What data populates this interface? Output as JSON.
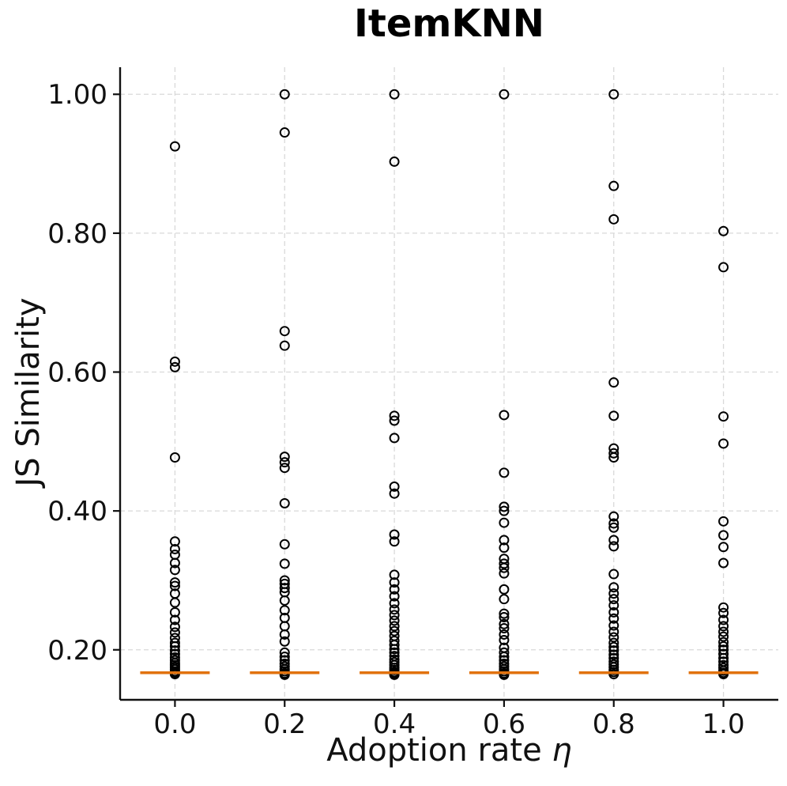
{
  "chart": {
    "title": "ItemKNN",
    "xlabel_text": "Adoption rate ",
    "xlabel_symbol": "η",
    "ylabel": "JS Similarity"
  },
  "chart_data": {
    "type": "boxplot",
    "title": "ItemKNN",
    "xlabel": "Adoption rate η",
    "ylabel": "JS Similarity",
    "categories": [
      "0.0",
      "0.2",
      "0.4",
      "0.6",
      "0.8",
      "1.0"
    ],
    "yticks": [
      {
        "value": 1.0,
        "label": "1.00"
      },
      {
        "value": 0.8,
        "label": "0.80"
      },
      {
        "value": 0.6,
        "label": "0.60"
      },
      {
        "value": 0.4,
        "label": "0.40"
      },
      {
        "value": 0.2,
        "label": "0.20"
      }
    ],
    "ylim": [
      0.128,
      1.039
    ],
    "grid": "dashed, both axes",
    "legend": "none",
    "marker": "open circle",
    "median_color": "#e1720e",
    "series": [
      {
        "category": "0.0",
        "median": 0.167,
        "outliers": [
          0.925,
          0.615,
          0.607,
          0.477,
          0.356,
          0.345,
          0.337,
          0.325,
          0.315,
          0.297,
          0.292,
          0.281,
          0.268,
          0.254,
          0.243,
          0.233,
          0.225,
          0.217,
          0.21,
          0.205,
          0.199,
          0.194,
          0.189,
          0.185,
          0.181,
          0.178,
          0.175,
          0.172,
          0.169,
          0.167,
          0.165
        ]
      },
      {
        "category": "0.2",
        "median": 0.167,
        "outliers": [
          1.0,
          0.945,
          0.659,
          0.638,
          0.478,
          0.47,
          0.462,
          0.411,
          0.352,
          0.324,
          0.3,
          0.295,
          0.289,
          0.283,
          0.271,
          0.257,
          0.246,
          0.234,
          0.222,
          0.212,
          0.196,
          0.19,
          0.185,
          0.18,
          0.176,
          0.172,
          0.169,
          0.166,
          0.164
        ]
      },
      {
        "category": "0.4",
        "median": 0.167,
        "outliers": [
          1.0,
          0.903,
          0.537,
          0.53,
          0.505,
          0.435,
          0.425,
          0.366,
          0.356,
          0.308,
          0.297,
          0.287,
          0.277,
          0.267,
          0.258,
          0.25,
          0.242,
          0.234,
          0.227,
          0.22,
          0.213,
          0.207,
          0.201,
          0.196,
          0.191,
          0.186,
          0.182,
          0.178,
          0.174,
          0.171,
          0.168,
          0.166,
          0.164
        ]
      },
      {
        "category": "0.6",
        "median": 0.167,
        "outliers": [
          1.0,
          0.538,
          0.455,
          0.406,
          0.4,
          0.383,
          0.358,
          0.347,
          0.331,
          0.324,
          0.318,
          0.31,
          0.287,
          0.273,
          0.252,
          0.247,
          0.237,
          0.231,
          0.222,
          0.214,
          0.203,
          0.196,
          0.19,
          0.185,
          0.18,
          0.176,
          0.172,
          0.169,
          0.166,
          0.164
        ]
      },
      {
        "category": "0.8",
        "median": 0.167,
        "outliers": [
          1.0,
          0.868,
          0.82,
          0.585,
          0.537,
          0.49,
          0.483,
          0.477,
          0.392,
          0.382,
          0.376,
          0.358,
          0.349,
          0.309,
          0.29,
          0.281,
          0.273,
          0.264,
          0.254,
          0.245,
          0.235,
          0.226,
          0.218,
          0.21,
          0.204,
          0.199,
          0.193,
          0.188,
          0.183,
          0.179,
          0.175,
          0.171,
          0.168,
          0.165
        ]
      },
      {
        "category": "1.0",
        "median": 0.167,
        "outliers": [
          0.803,
          0.751,
          0.536,
          0.497,
          0.385,
          0.365,
          0.348,
          0.325,
          0.261,
          0.253,
          0.243,
          0.234,
          0.226,
          0.219,
          0.211,
          0.205,
          0.2,
          0.194,
          0.188,
          0.183,
          0.178,
          0.174,
          0.17,
          0.167,
          0.165
        ]
      }
    ]
  },
  "style": {
    "background": "#ffffff",
    "point_stroke": "#000000",
    "grid_color": "#d9d9d9",
    "axis_color": "#111111",
    "median_color": "#e1720e"
  }
}
